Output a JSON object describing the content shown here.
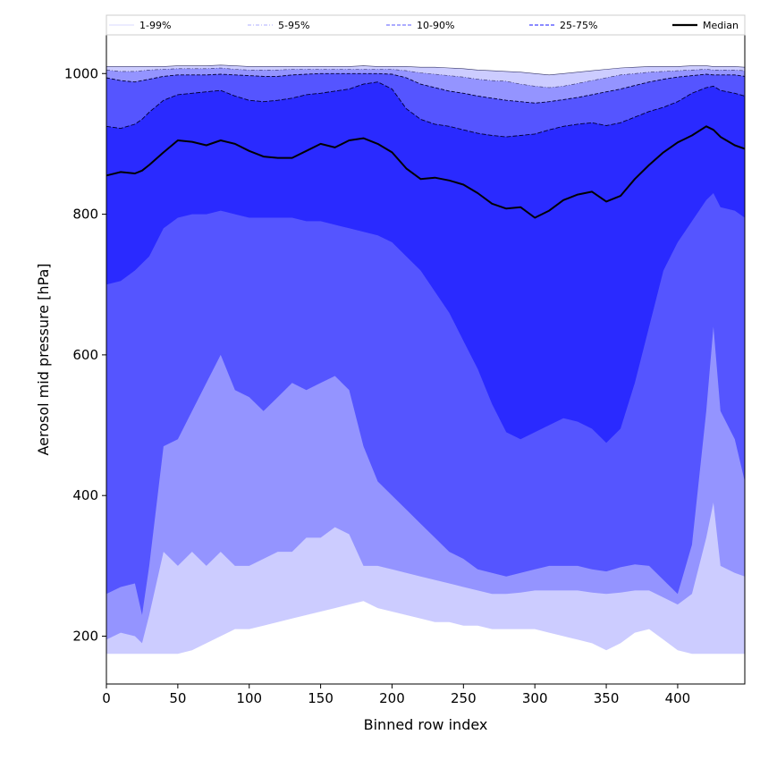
{
  "chart_data": {
    "type": "area",
    "title": "",
    "xlabel": "Binned row index",
    "ylabel": "Aerosol mid pressure [hPa]",
    "xlim": [
      0,
      447
    ],
    "ylim": [
      132,
      1055
    ],
    "y_inverted": false,
    "grid": false,
    "legend_placement": "top, expanded across",
    "x_ticks": [
      0,
      50,
      100,
      150,
      200,
      250,
      300,
      350,
      400
    ],
    "y_ticks": [
      200,
      400,
      600,
      800,
      1000
    ],
    "x_tick_labels": [
      "0",
      "50",
      "100",
      "150",
      "200",
      "250",
      "300",
      "350",
      "400"
    ],
    "y_tick_labels": [
      "200",
      "400",
      "600",
      "800",
      "1000"
    ],
    "colors": {
      "band_1_99": "#ccccff",
      "band_5_95": "#9494ff",
      "band_10_90": "#5555ff",
      "band_25_75": "#2a2aff",
      "median": "#000000"
    },
    "legend": [
      {
        "label": "1-99%",
        "style": "solid-thin",
        "color": "#ccccff"
      },
      {
        "label": "5-95%",
        "style": "dashdot-thin",
        "color": "#9494ff"
      },
      {
        "label": "10-90%",
        "style": "dashed",
        "color": "#7a7aff"
      },
      {
        "label": "25-75%",
        "style": "dashed",
        "color": "#4444ff"
      },
      {
        "label": "Median",
        "style": "solid-thick",
        "color": "#000000"
      }
    ],
    "x": [
      0,
      10,
      20,
      25,
      30,
      40,
      50,
      60,
      70,
      80,
      90,
      100,
      110,
      120,
      130,
      140,
      150,
      160,
      170,
      180,
      190,
      200,
      210,
      220,
      230,
      240,
      250,
      260,
      270,
      280,
      290,
      300,
      310,
      320,
      330,
      340,
      350,
      360,
      370,
      380,
      390,
      400,
      410,
      420,
      425,
      430,
      440,
      447
    ],
    "series": [
      {
        "name": "1-99%",
        "low": [
          175,
          175,
          175,
          175,
          175,
          175,
          175,
          180,
          190,
          200,
          210,
          210,
          215,
          220,
          225,
          230,
          235,
          240,
          245,
          250,
          240,
          235,
          230,
          225,
          220,
          220,
          215,
          215,
          210,
          210,
          210,
          210,
          205,
          200,
          195,
          190,
          180,
          190,
          205,
          210,
          195,
          180,
          175,
          175,
          175,
          175,
          175,
          175
        ],
        "high": [
          1010,
          1010,
          1010,
          1010,
          1010,
          1010,
          1011,
          1011,
          1011,
          1012,
          1011,
          1010,
          1010,
          1010,
          1010,
          1010,
          1010,
          1010,
          1010,
          1011,
          1010,
          1010,
          1010,
          1009,
          1009,
          1008,
          1007,
          1005,
          1004,
          1003,
          1002,
          1000,
          998,
          1000,
          1002,
          1004,
          1006,
          1008,
          1009,
          1010,
          1010,
          1010,
          1011,
          1011,
          1010,
          1010,
          1010,
          1009
        ]
      },
      {
        "name": "5-95%",
        "low": [
          195,
          205,
          200,
          190,
          230,
          320,
          300,
          320,
          300,
          320,
          300,
          300,
          310,
          320,
          320,
          340,
          340,
          355,
          345,
          300,
          300,
          295,
          290,
          285,
          280,
          275,
          270,
          265,
          260,
          260,
          262,
          265,
          265,
          265,
          265,
          262,
          260,
          262,
          265,
          265,
          255,
          245,
          260,
          340,
          390,
          300,
          290,
          285
        ],
        "high": [
          1005,
          1003,
          1003,
          1004,
          1005,
          1006,
          1007,
          1007,
          1007,
          1008,
          1006,
          1005,
          1005,
          1005,
          1006,
          1006,
          1006,
          1006,
          1006,
          1006,
          1006,
          1006,
          1004,
          1001,
          999,
          997,
          995,
          992,
          990,
          989,
          985,
          982,
          980,
          982,
          986,
          990,
          994,
          998,
          1000,
          1002,
          1003,
          1004,
          1005,
          1006,
          1005,
          1005,
          1005,
          1004
        ]
      },
      {
        "name": "10-90%",
        "low": [
          260,
          270,
          275,
          230,
          300,
          470,
          480,
          520,
          560,
          600,
          550,
          540,
          520,
          540,
          560,
          550,
          560,
          570,
          550,
          470,
          420,
          400,
          380,
          360,
          340,
          320,
          310,
          295,
          290,
          285,
          290,
          295,
          300,
          300,
          300,
          295,
          292,
          298,
          302,
          300,
          280,
          260,
          330,
          520,
          640,
          520,
          480,
          420
        ],
        "high": [
          994,
          990,
          988,
          990,
          992,
          996,
          998,
          998,
          998,
          999,
          998,
          997,
          996,
          996,
          998,
          999,
          1000,
          1000,
          1000,
          1000,
          1000,
          999,
          994,
          985,
          980,
          975,
          972,
          968,
          965,
          962,
          960,
          958,
          960,
          963,
          966,
          970,
          974,
          978,
          983,
          988,
          992,
          995,
          997,
          999,
          998,
          998,
          998,
          996
        ]
      },
      {
        "name": "25-75%",
        "low": [
          700,
          705,
          720,
          730,
          740,
          780,
          795,
          800,
          800,
          805,
          800,
          795,
          795,
          795,
          795,
          790,
          790,
          785,
          780,
          775,
          770,
          760,
          740,
          720,
          690,
          660,
          620,
          580,
          530,
          490,
          480,
          490,
          500,
          510,
          505,
          495,
          475,
          495,
          560,
          640,
          720,
          760,
          790,
          820,
          830,
          810,
          805,
          795
        ],
        "high": [
          925,
          922,
          928,
          935,
          945,
          962,
          970,
          972,
          974,
          976,
          968,
          962,
          960,
          962,
          965,
          970,
          972,
          975,
          978,
          985,
          988,
          978,
          950,
          935,
          928,
          925,
          920,
          915,
          912,
          910,
          912,
          914,
          920,
          925,
          928,
          930,
          926,
          930,
          938,
          946,
          952,
          960,
          972,
          980,
          982,
          976,
          972,
          968
        ]
      },
      {
        "name": "Median",
        "values": [
          855,
          860,
          858,
          862,
          870,
          888,
          905,
          903,
          898,
          905,
          900,
          890,
          882,
          880,
          880,
          890,
          900,
          895,
          905,
          908,
          900,
          888,
          865,
          850,
          852,
          848,
          842,
          830,
          815,
          808,
          810,
          795,
          805,
          820,
          828,
          832,
          818,
          826,
          850,
          870,
          888,
          902,
          912,
          925,
          920,
          910,
          898,
          893
        ]
      }
    ]
  }
}
